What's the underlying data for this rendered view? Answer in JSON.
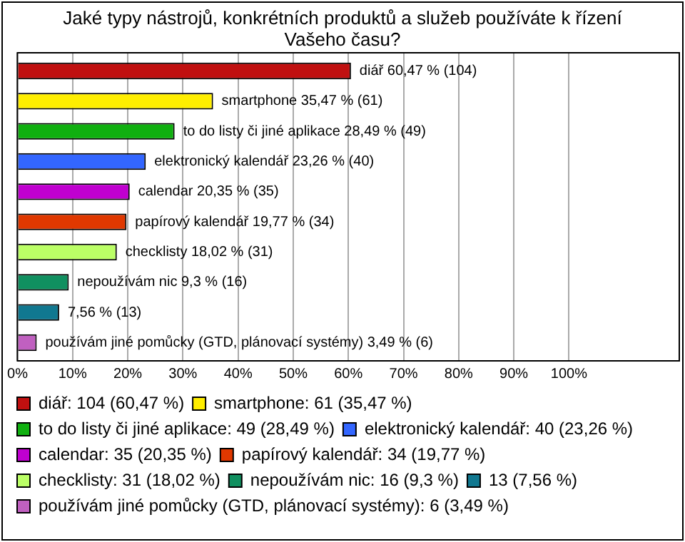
{
  "chart_data": {
    "type": "bar",
    "orientation": "horizontal",
    "title": "Jaké typy nástrojů, konkrétních produktů a služeb používáte k řízení Vašeho času?",
    "categories": [
      null
    ],
    "series": [
      {
        "name": "diář: 104 (60,47 %)",
        "color": "#c01010",
        "values": [
          60.47
        ],
        "value_labels": [
          "diář 60,47 % (104)"
        ]
      },
      {
        "name": "smartphone: 61 (35,47 %)",
        "color": "#ffee00",
        "values": [
          35.47
        ],
        "value_labels": [
          "smartphone 35,47 % (61)"
        ]
      },
      {
        "name": "to do listy či jiné aplikace: 49 (28,49 %)",
        "color": "#10b010",
        "values": [
          28.49
        ],
        "value_labels": [
          "to do listy či jiné aplikace 28,49 % (49)"
        ]
      },
      {
        "name": "elektronický kalendář: 40 (23,26 %)",
        "color": "#3366ff",
        "values": [
          23.26
        ],
        "value_labels": [
          "elektronický kalendář 23,26 % (40)"
        ]
      },
      {
        "name": "calendar: 35 (20,35 %)",
        "color": "#c000d0",
        "values": [
          20.35
        ],
        "value_labels": [
          "calendar 20,35 % (35)"
        ]
      },
      {
        "name": "papírový kalendář: 34 (19,77 %)",
        "color": "#e03800",
        "values": [
          19.77
        ],
        "value_labels": [
          "papírový kalendář 19,77 % (34)"
        ]
      },
      {
        "name": "checklisty: 31 (18,02 %)",
        "color": "#bbff66",
        "values": [
          18.02
        ],
        "value_labels": [
          "checklisty 18,02 % (31)"
        ]
      },
      {
        "name": "nepoužívám nic: 16 (9,3 %)",
        "color": "#109060",
        "values": [
          9.3
        ],
        "value_labels": [
          "nepoužívám nic 9,3 % (16)"
        ]
      },
      {
        "name": "13 (7,56 %)",
        "color": "#107890",
        "values": [
          7.56
        ],
        "value_labels": [
          "7,56 % (13)"
        ]
      },
      {
        "name": "používám jiné pomůcky (GTD, plánovací systémy): 6 (3,49 %)",
        "color": "#c060c0",
        "values": [
          3.49
        ],
        "value_labels": [
          "používám jiné pomůcky (GTD, plánovací systémy) 3,49 % (6)"
        ]
      }
    ],
    "xlim": [
      0,
      120
    ],
    "xticks": [
      {
        "value": 0,
        "label": "0%"
      },
      {
        "value": 10,
        "label": "10%"
      },
      {
        "value": 20,
        "label": "20%"
      },
      {
        "value": 30,
        "label": "30%"
      },
      {
        "value": 40,
        "label": "40%"
      },
      {
        "value": 50,
        "label": "50%"
      },
      {
        "value": 60,
        "label": "60%"
      },
      {
        "value": 70,
        "label": "70%"
      },
      {
        "value": 80,
        "label": "80%"
      },
      {
        "value": 90,
        "label": "90%"
      },
      {
        "value": 100,
        "label": "100%"
      }
    ],
    "grid": "x",
    "legend": "bottom",
    "tick_labels": "x"
  }
}
